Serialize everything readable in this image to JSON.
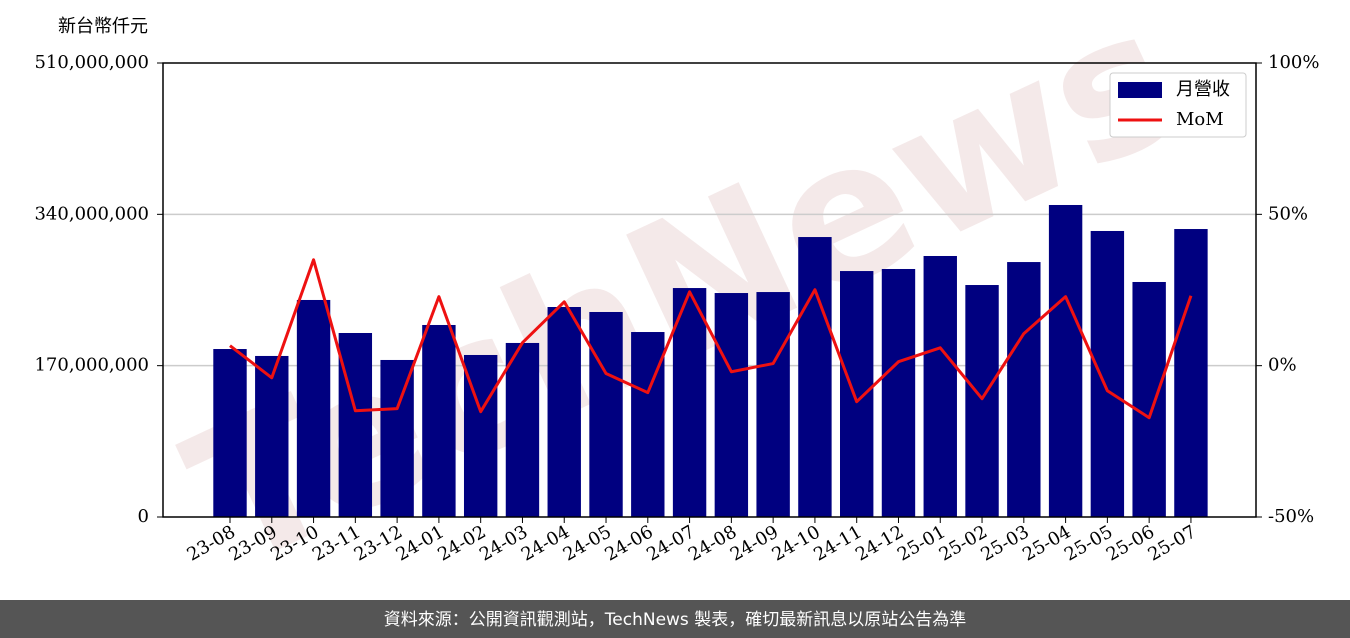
{
  "chart_data": {
    "type": "bar-line",
    "y_axis_label": "新台幣仟元",
    "watermark": "TechNews",
    "source": "資料來源：公開資訊觀測站，TechNews 製表，確切最新訊息以原站公告為準",
    "categories": [
      "23-08",
      "23-09",
      "23-10",
      "23-11",
      "23-12",
      "24-01",
      "24-02",
      "24-03",
      "24-04",
      "24-05",
      "24-06",
      "24-07",
      "24-08",
      "24-09",
      "24-10",
      "24-11",
      "24-12",
      "25-01",
      "25-02",
      "25-03",
      "25-04",
      "25-05",
      "25-06",
      "25-07"
    ],
    "series": [
      {
        "name": "月營收",
        "type": "bar",
        "color": "#000080",
        "values": [
          188700000,
          180900000,
          243800000,
          206700000,
          176400000,
          215700000,
          182000000,
          195500000,
          235900000,
          230300000,
          207800000,
          257200000,
          251600000,
          252700000,
          314500000,
          276300000,
          278600000,
          293200000,
          260600000,
          286400000,
          350500000,
          321300000,
          264000000,
          323500000
        ]
      },
      {
        "name": "MoM",
        "type": "line",
        "axis": "y2",
        "color": "#ee1111",
        "values": [
          6.6,
          -4.0,
          35.0,
          -14.9,
          -14.2,
          22.8,
          -15.2,
          7.6,
          21.1,
          -2.6,
          -8.9,
          24.4,
          -2.0,
          0.7,
          25.1,
          -11.9,
          1.3,
          5.9,
          -10.9,
          10.6,
          22.8,
          -8.3,
          -17.2,
          23.1
        ]
      }
    ],
    "ylim": [
      0,
      510000000
    ],
    "yticks": [
      0,
      {
        "value": 170000000,
        "label": "170,000,000"
      },
      {
        "value": 340000000,
        "label": "340,000,000"
      },
      {
        "value": 510000000,
        "label": "510,000,000"
      }
    ],
    "y2lim": [
      -50,
      100
    ],
    "y2ticks": [
      {
        "value": -50,
        "label": "-50%"
      },
      {
        "value": 0,
        "label": "0%"
      },
      {
        "value": 50,
        "label": "50%"
      },
      {
        "value": 100,
        "label": "100%"
      }
    ],
    "grid": true,
    "legend": "upper right"
  }
}
